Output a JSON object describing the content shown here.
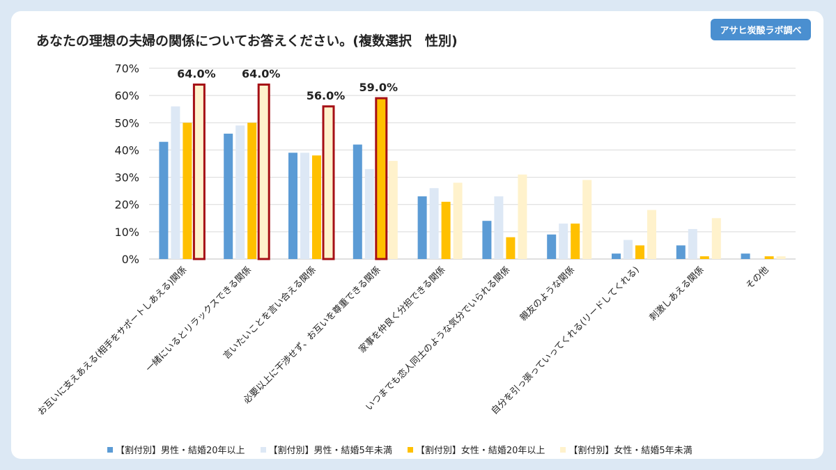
{
  "title": "あなたの理想の夫婦の関係についてお答えください。(複数選択　性別)",
  "badge": "アサヒ炭酸ラボ調べ",
  "chart_data": {
    "type": "bar",
    "categories": [
      "お互いに支えあえる(相手をサポートしあえる)関係",
      "一緒にいるとリラックスできる関係",
      "言いたいことを言い合える関係",
      "必要以上に干渉せず、お互いを尊重できる関係",
      "家事を仲良く分担できる関係",
      "いつまでも恋人同士のような気分でいられる関係",
      "親友のような関係",
      "自分を引っ張っていってくれる(リードしてくれる)",
      "刺激しあえる関係",
      "その他"
    ],
    "series": [
      {
        "name": "【割付別】男性・結婚20年以上",
        "color": "#5b9bd5",
        "values": [
          43,
          46,
          39,
          42,
          23,
          14,
          9,
          2,
          5,
          2
        ]
      },
      {
        "name": "【割付別】男性・結婚5年未満",
        "color": "#dde8f5",
        "values": [
          56,
          49,
          39,
          33,
          26,
          23,
          13,
          7,
          11,
          0
        ]
      },
      {
        "name": "【割付別】女性・結婚20年以上",
        "color": "#ffc000",
        "values": [
          50,
          50,
          38,
          59,
          21,
          8,
          13,
          5,
          1,
          1
        ]
      },
      {
        "name": "【割付別】女性・結婚5年未満",
        "color": "#fff2cc",
        "values": [
          64,
          64,
          56,
          36,
          28,
          31,
          29,
          18,
          15,
          1
        ]
      }
    ],
    "highlights": [
      {
        "category": 0,
        "series": 3,
        "label": "64.0%"
      },
      {
        "category": 1,
        "series": 3,
        "label": "64.0%"
      },
      {
        "category": 2,
        "series": 3,
        "label": "56.0%"
      },
      {
        "category": 3,
        "series": 2,
        "label": "59.0%"
      }
    ],
    "highlight_color": "#a50f15",
    "ylim": [
      0,
      70
    ],
    "yticks": [
      "0%",
      "10%",
      "20%",
      "30%",
      "40%",
      "50%",
      "60%",
      "70%"
    ],
    "grid": true,
    "legend_position": "bottom"
  }
}
